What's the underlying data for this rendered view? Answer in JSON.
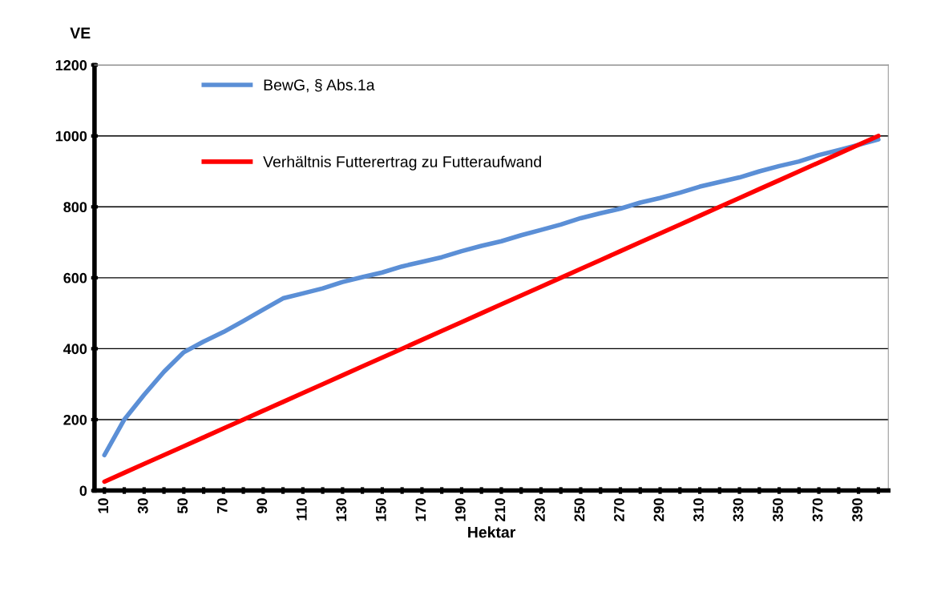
{
  "chart_data": {
    "type": "line",
    "xlabel": "Hektar",
    "ylabel": "VE",
    "categories": [
      "10",
      null,
      "30",
      null,
      "50",
      null,
      "70",
      null,
      "90",
      null,
      "110",
      null,
      "130",
      null,
      "150",
      null,
      "170",
      null,
      "190",
      null,
      "210",
      null,
      "230",
      null,
      "250",
      null,
      "270",
      null,
      "290",
      null,
      "310",
      null,
      "330",
      null,
      "350",
      null,
      "370",
      null,
      "390",
      null
    ],
    "series": [
      {
        "name": "BewG, § Abs.1a",
        "color": "#5b8fd6",
        "values": [
          100,
          200,
          270,
          335,
          390,
          420,
          447,
          478,
          510,
          542,
          556,
          570,
          588,
          602,
          615,
          632,
          645,
          658,
          675,
          690,
          703,
          720,
          735,
          750,
          768,
          782,
          795,
          812,
          825,
          840,
          857,
          870,
          883,
          900,
          915,
          928,
          946,
          960,
          975,
          990
        ]
      },
      {
        "name": "Verhältnis Futterertrag zu Futteraufwand",
        "color": "#ff0000",
        "values": [
          25,
          50,
          75,
          100,
          125,
          150,
          175,
          200,
          225,
          250,
          275,
          300,
          325,
          350,
          375,
          400,
          425,
          450,
          475,
          500,
          525,
          550,
          575,
          600,
          625,
          650,
          675,
          700,
          725,
          750,
          775,
          800,
          825,
          850,
          875,
          900,
          925,
          950,
          975,
          1000
        ]
      }
    ],
    "ylim": [
      0,
      1200
    ],
    "yticks": [
      0,
      200,
      400,
      600,
      800,
      1000,
      1200
    ],
    "grid": "y",
    "legend": "top left",
    "marker": "none",
    "line_style": "solid"
  }
}
